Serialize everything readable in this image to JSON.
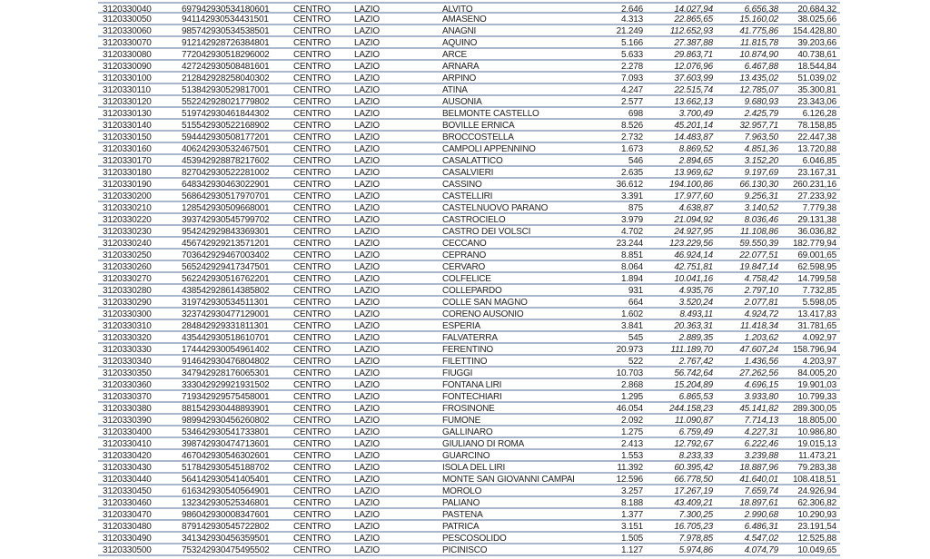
{
  "rows": [
    [
      "3120330040",
      "697942930534180601",
      "CENTRO",
      "LAZIO",
      "ALVITO",
      "2.646",
      "14.027,94",
      "6.656,38",
      "20.684,32"
    ],
    [
      "3120330050",
      "941142930534431501",
      "CENTRO",
      "LAZIO",
      "AMASENO",
      "4.313",
      "22.865,65",
      "15.160,02",
      "38.025,66"
    ],
    [
      "3120330060",
      "985742930534538501",
      "CENTRO",
      "LAZIO",
      "ANAGNI",
      "21.249",
      "112.652,93",
      "41.775,86",
      "154.428,80"
    ],
    [
      "3120330070",
      "912142928726384801",
      "CENTRO",
      "LAZIO",
      "AQUINO",
      "5.166",
      "27.387,88",
      "11.815,78",
      "39.203,66"
    ],
    [
      "3120330080",
      "772042930518296002",
      "CENTRO",
      "LAZIO",
      "ARCE",
      "5.633",
      "29.863,71",
      "10.874,90",
      "40.738,61"
    ],
    [
      "3120330090",
      "427242930508481601",
      "CENTRO",
      "LAZIO",
      "ARNARA",
      "2.278",
      "12.076,96",
      "6.467,88",
      "18.544,84"
    ],
    [
      "3120330100",
      "212842928258040302",
      "CENTRO",
      "LAZIO",
      "ARPINO",
      "7.093",
      "37.603,99",
      "13.435,02",
      "51.039,02"
    ],
    [
      "3120330110",
      "513842930529817001",
      "CENTRO",
      "LAZIO",
      "ATINA",
      "4.247",
      "22.515,74",
      "12.785,07",
      "35.300,81"
    ],
    [
      "3120330120",
      "552242928021779802",
      "CENTRO",
      "LAZIO",
      "AUSONIA",
      "2.577",
      "13.662,13",
      "9.680,93",
      "23.343,06"
    ],
    [
      "3120330130",
      "519742930461844302",
      "CENTRO",
      "LAZIO",
      "BELMONTE CASTELLO",
      "698",
      "3.700,49",
      "2.425,79",
      "6.126,28"
    ],
    [
      "3120330140",
      "515542930522168902",
      "CENTRO",
      "LAZIO",
      "BOVILLE ERNICA",
      "8.526",
      "45.201,14",
      "32.957,71",
      "78.158,85"
    ],
    [
      "3120330150",
      "594442930508177201",
      "CENTRO",
      "LAZIO",
      "BROCCOSTELLA",
      "2.732",
      "14.483,87",
      "7.963,50",
      "22.447,38"
    ],
    [
      "3120330160",
      "406242930532467501",
      "CENTRO",
      "LAZIO",
      "CAMPOLI APPENNINO",
      "1.673",
      "8.869,52",
      "4.851,36",
      "13.720,88"
    ],
    [
      "3120330170",
      "453942928878217602",
      "CENTRO",
      "LAZIO",
      "CASALATTICO",
      "546",
      "2.894,65",
      "3.152,20",
      "6.046,85"
    ],
    [
      "3120330180",
      "827042930522281002",
      "CENTRO",
      "LAZIO",
      "CASALVIERI",
      "2.635",
      "13.969,62",
      "9.197,69",
      "23.167,31"
    ],
    [
      "3120330190",
      "648342930463022901",
      "CENTRO",
      "LAZIO",
      "CASSINO",
      "36.612",
      "194.100,86",
      "66.130,30",
      "260.231,16"
    ],
    [
      "3120330200",
      "568642930517970701",
      "CENTRO",
      "LAZIO",
      "CASTELLIRI",
      "3.391",
      "17.977,60",
      "9.256,31",
      "27.233,92"
    ],
    [
      "3120330210",
      "128542930509668001",
      "CENTRO",
      "LAZIO",
      "CASTELNUOVO PARANO",
      "875",
      "4.638,87",
      "3.140,52",
      "7.779,38"
    ],
    [
      "3120330220",
      "393742930545799702",
      "CENTRO",
      "LAZIO",
      "CASTROCIELO",
      "3.979",
      "21.094,92",
      "8.036,46",
      "29.131,38"
    ],
    [
      "3120330230",
      "954242929843369301",
      "CENTRO",
      "LAZIO",
      "CASTRO DEI VOLSCI",
      "4.702",
      "24.927,95",
      "11.108,86",
      "36.036,82"
    ],
    [
      "3120330240",
      "456742929213571201",
      "CENTRO",
      "LAZIO",
      "CECCANO",
      "23.244",
      "123.229,56",
      "59.550,39",
      "182.779,94"
    ],
    [
      "3120330250",
      "703642929467003402",
      "CENTRO",
      "LAZIO",
      "CEPRANO",
      "8.851",
      "46.924,14",
      "22.077,51",
      "69.001,65"
    ],
    [
      "3120330260",
      "565242929417347501",
      "CENTRO",
      "LAZIO",
      "CERVARO",
      "8.064",
      "42.751,81",
      "19.847,14",
      "62.598,95"
    ],
    [
      "3120330270",
      "562242930516762201",
      "CENTRO",
      "LAZIO",
      "COLFELICE",
      "1.894",
      "10.041,16",
      "4.758,42",
      "14.799,58"
    ],
    [
      "3120330280",
      "438542928614385802",
      "CENTRO",
      "LAZIO",
      "COLLEPARDO",
      "931",
      "4.935,76",
      "2.797,10",
      "7.732,85"
    ],
    [
      "3120330290",
      "319742930534511301",
      "CENTRO",
      "LAZIO",
      "COLLE SAN MAGNO",
      "664",
      "3.520,24",
      "2.077,81",
      "5.598,05"
    ],
    [
      "3120330300",
      "323742930477129001",
      "CENTRO",
      "LAZIO",
      "CORENO AUSONIO",
      "1.602",
      "8.493,11",
      "4.924,72",
      "13.417,83"
    ],
    [
      "3120330310",
      "284842929331811301",
      "CENTRO",
      "LAZIO",
      "ESPERIA",
      "3.841",
      "20.363,31",
      "11.418,34",
      "31.781,65"
    ],
    [
      "3120330320",
      "435442930518610701",
      "CENTRO",
      "LAZIO",
      "FALVATERRA",
      "545",
      "2.889,35",
      "1.203,62",
      "4.092,97"
    ],
    [
      "3120330330",
      "174442930054961402",
      "CENTRO",
      "LAZIO",
      "FERENTINO",
      "20.973",
      "111.189,70",
      "47.607,24",
      "158.796,94"
    ],
    [
      "3120330340",
      "914642930476804802",
      "CENTRO",
      "LAZIO",
      "FILETTINO",
      "522",
      "2.767,42",
      "1.436,56",
      "4.203,97"
    ],
    [
      "3120330350",
      "347942928176065301",
      "CENTRO",
      "LAZIO",
      "FIUGGI",
      "10.703",
      "56.742,64",
      "27.262,56",
      "84.005,20"
    ],
    [
      "3120330360",
      "333042929921931502",
      "CENTRO",
      "LAZIO",
      "FONTANA LIRI",
      "2.868",
      "15.204,89",
      "4.696,15",
      "19.901,03"
    ],
    [
      "3120330370",
      "719342929575458001",
      "CENTRO",
      "LAZIO",
      "FONTECHIARI",
      "1.295",
      "6.865,53",
      "3.933,80",
      "10.799,33"
    ],
    [
      "3120330380",
      "881542930448893901",
      "CENTRO",
      "LAZIO",
      "FROSINONE",
      "46.054",
      "244.158,23",
      "45.141,82",
      "289.300,05"
    ],
    [
      "3120330390",
      "989942930456260802",
      "CENTRO",
      "LAZIO",
      "FUMONE",
      "2.092",
      "11.090,87",
      "7.714,13",
      "18.805,00"
    ],
    [
      "3120330400",
      "534642930541733801",
      "CENTRO",
      "LAZIO",
      "GALLINARO",
      "1.275",
      "6.759,49",
      "4.227,31",
      "10.986,80"
    ],
    [
      "3120330410",
      "398742930474713601",
      "CENTRO",
      "LAZIO",
      "GIULIANO DI ROMA",
      "2.413",
      "12.792,67",
      "6.222,46",
      "19.015,13"
    ],
    [
      "3120330420",
      "467042930546302601",
      "CENTRO",
      "LAZIO",
      "GUARCINO",
      "1.553",
      "8.233,33",
      "3.239,88",
      "11.473,21"
    ],
    [
      "3120330430",
      "517842930545188702",
      "CENTRO",
      "LAZIO",
      "ISOLA DEL LIRI",
      "11.392",
      "60.395,42",
      "18.887,96",
      "79.283,38"
    ],
    [
      "3120330440",
      "564142930541405401",
      "CENTRO",
      "LAZIO",
      "MONTE SAN GIOVANNI CAMPAI",
      "12.596",
      "66.778,50",
      "41.640,01",
      "108.418,51"
    ],
    [
      "3120330450",
      "616342930540564901",
      "CENTRO",
      "LAZIO",
      "MOROLO",
      "3.257",
      "17.267,19",
      "7.659,74",
      "24.926,94"
    ],
    [
      "3120330460",
      "132342930525346801",
      "CENTRO",
      "LAZIO",
      "PALIANO",
      "8.188",
      "43.409,21",
      "18.897,61",
      "62.306,82"
    ],
    [
      "3120330470",
      "986042930008347601",
      "CENTRO",
      "LAZIO",
      "PASTENA",
      "1.377",
      "7.300,25",
      "2.990,68",
      "10.290,93"
    ],
    [
      "3120330480",
      "879142930545722802",
      "CENTRO",
      "LAZIO",
      "PATRICA",
      "3.151",
      "16.705,23",
      "6.486,31",
      "23.191,54"
    ],
    [
      "3120330490",
      "341342930456359501",
      "CENTRO",
      "LAZIO",
      "PESCOSOLIDO",
      "1.505",
      "7.978,85",
      "4.547,02",
      "12.525,88"
    ],
    [
      "3120330500",
      "753242930475495502",
      "CENTRO",
      "LAZIO",
      "PICINISCO",
      "1.127",
      "5.974,86",
      "4.074,79",
      "10.049,65"
    ]
  ]
}
